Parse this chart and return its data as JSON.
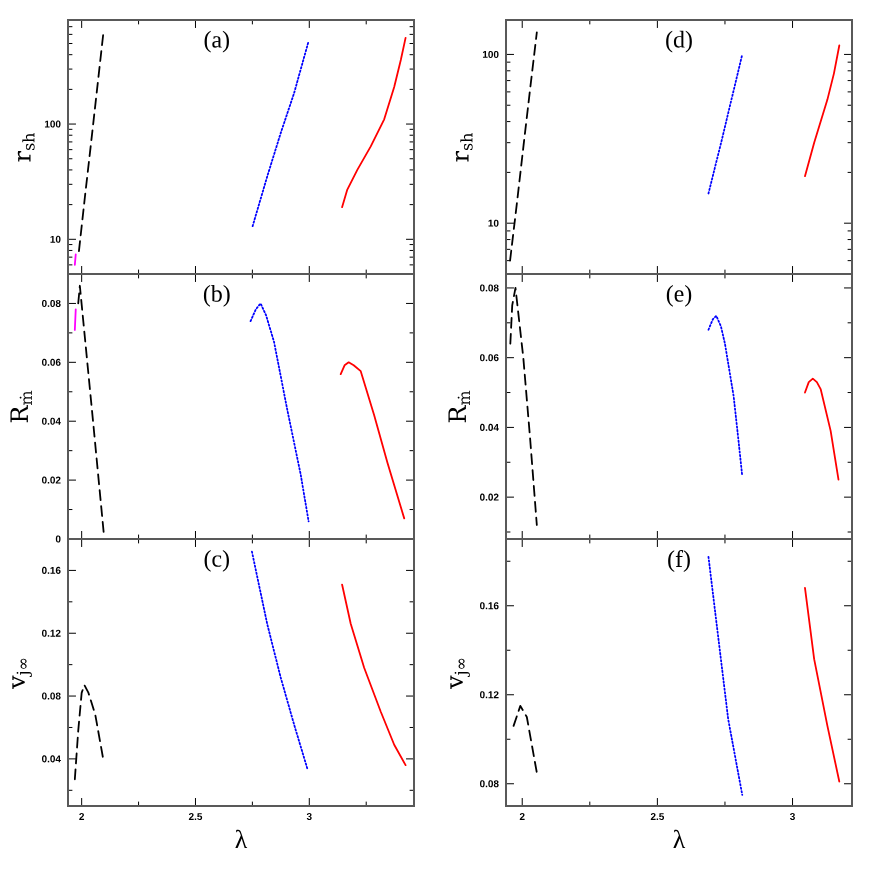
{
  "chart_data": [
    {
      "type": "line",
      "annotations": [
        "(a)"
      ],
      "ylabel": "r$_{sh}$",
      "log": "y",
      "xlim": [
        1.94,
        3.46
      ],
      "ylim": [
        5,
        800
      ],
      "tick_labels": "y",
      "marker": "none",
      "xticks": [
        2,
        {
          "value": 2.25,
          "label": null
        },
        2.5,
        {
          "value": 2.75,
          "label": null
        },
        3,
        {
          "value": 3.25,
          "label": null
        }
      ],
      "yticks": [
        {
          "value": 6,
          "label": null
        },
        {
          "value": 7,
          "label": null
        },
        {
          "value": 8,
          "label": null
        },
        {
          "value": 9,
          "label": null
        },
        10,
        {
          "value": 20,
          "label": null
        },
        {
          "value": 30,
          "label": null
        },
        {
          "value": 40,
          "label": null
        },
        {
          "value": 50,
          "label": null
        },
        {
          "value": 60,
          "label": null
        },
        {
          "value": 70,
          "label": null
        },
        {
          "value": 80,
          "label": null
        },
        {
          "value": 90,
          "label": null
        },
        100,
        {
          "value": 200,
          "label": null
        },
        {
          "value": 300,
          "label": null
        },
        {
          "value": 400,
          "label": null
        },
        {
          "value": 500,
          "label": null
        },
        {
          "value": 600,
          "label": null
        },
        {
          "value": 700,
          "label": null
        }
      ],
      "series": [
        {
          "color": "#000000",
          "line_style": "dashed",
          "x": [
            1.988,
            2.015,
            2.04,
            2.07,
            2.097
          ],
          "values": [
            7.9,
            24,
            65,
            220,
            660
          ]
        },
        {
          "color": "#0000ff",
          "line_style": "dotted",
          "x": [
            2.751,
            2.815,
            2.874,
            2.933,
            2.997
          ],
          "values": [
            13,
            35,
            83,
            185,
            525
          ]
        },
        {
          "color": "#ff0000",
          "line_style": "solid",
          "x": [
            3.144,
            3.167,
            3.211,
            3.27,
            3.329,
            3.373,
            3.402,
            3.423
          ],
          "values": [
            19,
            27,
            40,
            64,
            110,
            210,
            360,
            560
          ]
        },
        {
          "color": "#ff00ff",
          "line_style": "solid",
          "x": [
            1.97,
            1.974
          ],
          "values": [
            6.0,
            7.4
          ]
        }
      ]
    },
    {
      "type": "line",
      "annotations": [
        "(b)"
      ],
      "ylabel": "R$_{ṁ}$",
      "xlim": [
        1.94,
        3.46
      ],
      "ylim": [
        0,
        0.09
      ],
      "tick_labels": "y",
      "marker": "none",
      "xticks": [
        2,
        {
          "value": 2.25,
          "label": null
        },
        2.5,
        {
          "value": 2.75,
          "label": null
        },
        3,
        {
          "value": 3.25,
          "label": null
        }
      ],
      "yticks": [
        0,
        {
          "value": 0.01,
          "label": null
        },
        0.02,
        {
          "value": 0.03,
          "label": null
        },
        0.04,
        {
          "value": 0.05,
          "label": null
        },
        0.06,
        {
          "value": 0.07,
          "label": null
        },
        0.08
      ],
      "series": [
        {
          "color": "#000000",
          "line_style": "dashed",
          "x": [
            1.985,
            1.992,
            2.05,
            2.097
          ],
          "values": [
            0.08,
            0.086,
            0.04,
            0.002
          ]
        },
        {
          "color": "#0000ff",
          "line_style": "dotted",
          "x": [
            2.742,
            2.765,
            2.786,
            2.81,
            2.845,
            2.903,
            2.962,
            2.997
          ],
          "values": [
            0.074,
            0.078,
            0.08,
            0.076,
            0.067,
            0.044,
            0.022,
            0.006
          ]
        },
        {
          "color": "#ff0000",
          "line_style": "solid",
          "x": [
            3.138,
            3.155,
            3.173,
            3.195,
            3.226,
            3.285,
            3.343,
            3.417
          ],
          "values": [
            0.056,
            0.059,
            0.06,
            0.059,
            0.057,
            0.042,
            0.026,
            0.007
          ]
        },
        {
          "color": "#ff00ff",
          "line_style": "solid",
          "x": [
            1.97,
            1.974
          ],
          "values": [
            0.071,
            0.078
          ]
        }
      ]
    },
    {
      "type": "line",
      "annotations": [
        "(c)"
      ],
      "ylabel": "v$_{j∞}$",
      "xlabel": "λ",
      "xlim": [
        1.94,
        3.46
      ],
      "ylim": [
        0.01,
        0.18
      ],
      "marker": "none",
      "xticks": [
        2,
        {
          "value": 2.25,
          "label": null
        },
        2.5,
        {
          "value": 2.75,
          "label": null
        },
        3,
        {
          "value": 3.25,
          "label": null
        }
      ],
      "yticks": [
        {
          "value": 0.02,
          "label": null
        },
        0.04,
        {
          "value": 0.06,
          "label": null
        },
        0.08,
        {
          "value": 0.1,
          "label": null
        },
        0.12,
        {
          "value": 0.14,
          "label": null
        },
        0.16
      ],
      "series": [
        {
          "color": "#000000",
          "line_style": "dashed",
          "x": [
            1.97,
            1.985,
            2.0,
            2.012,
            2.03,
            2.06,
            2.097
          ],
          "values": [
            0.027,
            0.058,
            0.082,
            0.087,
            0.082,
            0.068,
            0.038
          ]
        },
        {
          "color": "#0000ff",
          "line_style": "dotted",
          "x": [
            2.748,
            2.815,
            2.874,
            2.933,
            2.991
          ],
          "values": [
            0.172,
            0.126,
            0.092,
            0.062,
            0.034
          ]
        },
        {
          "color": "#ff0000",
          "line_style": "solid",
          "x": [
            3.144,
            3.182,
            3.241,
            3.314,
            3.373,
            3.423
          ],
          "values": [
            0.151,
            0.126,
            0.098,
            0.07,
            0.049,
            0.036
          ]
        }
      ]
    },
    {
      "type": "line",
      "annotations": [
        "(d)"
      ],
      "ylabel": "r$_{sh}$",
      "log": "y",
      "xlim": [
        1.94,
        3.22
      ],
      "ylim": [
        5,
        160
      ],
      "tick_labels": "y",
      "marker": "none",
      "xticks": [
        2,
        {
          "value": 2.25,
          "label": null
        },
        2.5,
        {
          "value": 2.75,
          "label": null
        },
        3
      ],
      "yticks": [
        {
          "value": 6,
          "label": null
        },
        {
          "value": 7,
          "label": null
        },
        {
          "value": 8,
          "label": null
        },
        {
          "value": 9,
          "label": null
        },
        10,
        {
          "value": 20,
          "label": null
        },
        {
          "value": 30,
          "label": null
        },
        {
          "value": 40,
          "label": null
        },
        {
          "value": 50,
          "label": null
        },
        {
          "value": 60,
          "label": null
        },
        {
          "value": 70,
          "label": null
        },
        {
          "value": 80,
          "label": null
        },
        {
          "value": 90,
          "label": null
        },
        100
      ],
      "series": [
        {
          "color": "#000000",
          "line_style": "dashed",
          "x": [
            1.955,
            1.98,
            2.005,
            2.03,
            2.054
          ],
          "values": [
            6,
            13,
            29,
            64,
            135
          ]
        },
        {
          "color": "#0000ff",
          "line_style": "dotted",
          "x": [
            2.689,
            2.738,
            2.774,
            2.814
          ],
          "values": [
            15,
            31,
            54,
            100
          ]
        },
        {
          "color": "#ff0000",
          "line_style": "solid",
          "x": [
            3.046,
            3.08,
            3.129,
            3.153,
            3.173
          ],
          "values": [
            19,
            30,
            54,
            77,
            113
          ]
        }
      ]
    },
    {
      "type": "line",
      "annotations": [
        "(e)"
      ],
      "ylabel": "R$_{ṁ}$",
      "xlim": [
        1.94,
        3.22
      ],
      "ylim": [
        0.008,
        0.084
      ],
      "tick_labels": "y",
      "marker": "none",
      "xticks": [
        2,
        {
          "value": 2.25,
          "label": null
        },
        2.5,
        {
          "value": 2.75,
          "label": null
        },
        3
      ],
      "yticks": [
        {
          "value": 0.01,
          "label": null
        },
        0.02,
        {
          "value": 0.03,
          "label": null
        },
        0.04,
        {
          "value": 0.05,
          "label": null
        },
        0.06,
        {
          "value": 0.07,
          "label": null
        },
        0.08
      ],
      "series": [
        {
          "color": "#000000",
          "line_style": "dashed",
          "x": [
            1.956,
            1.963,
            1.975,
            2.004,
            2.029,
            2.054
          ],
          "values": [
            0.064,
            0.075,
            0.08,
            0.06,
            0.037,
            0.012
          ]
        },
        {
          "color": "#0000ff",
          "line_style": "dotted",
          "x": [
            2.689,
            2.705,
            2.718,
            2.735,
            2.75,
            2.782,
            2.799,
            2.814
          ],
          "values": [
            0.068,
            0.071,
            0.072,
            0.069,
            0.064,
            0.049,
            0.037,
            0.026
          ]
        },
        {
          "color": "#ff0000",
          "line_style": "solid",
          "x": [
            3.046,
            3.06,
            3.075,
            3.09,
            3.104,
            3.141,
            3.17
          ],
          "values": [
            0.05,
            0.053,
            0.054,
            0.053,
            0.051,
            0.039,
            0.025
          ]
        }
      ]
    },
    {
      "type": "line",
      "annotations": [
        "(f)"
      ],
      "ylabel": "v$_{j∞}$",
      "xlabel": "λ",
      "xlim": [
        1.94,
        3.22
      ],
      "ylim": [
        0.07,
        0.19
      ],
      "marker": "none",
      "xticks": [
        2,
        {
          "value": 2.25,
          "label": null
        },
        2.5,
        {
          "value": 2.75,
          "label": null
        },
        3
      ],
      "yticks": [
        0.08,
        {
          "value": 0.1,
          "label": null
        },
        0.12,
        {
          "value": 0.14,
          "label": null
        },
        0.16,
        {
          "value": 0.18,
          "label": null
        }
      ],
      "series": [
        {
          "color": "#000000",
          "line_style": "dashed",
          "x": [
            1.968,
            1.993,
            2.017,
            2.054
          ],
          "values": [
            0.106,
            0.115,
            0.11,
            0.085
          ]
        },
        {
          "color": "#0000ff",
          "line_style": "dotted",
          "x": [
            2.689,
            2.726,
            2.762,
            2.814
          ],
          "values": [
            0.182,
            0.145,
            0.109,
            0.075
          ]
        },
        {
          "color": "#ff0000",
          "line_style": "solid",
          "x": [
            3.046,
            3.08,
            3.129,
            3.173
          ],
          "values": [
            0.168,
            0.136,
            0.106,
            0.081
          ]
        }
      ]
    }
  ]
}
